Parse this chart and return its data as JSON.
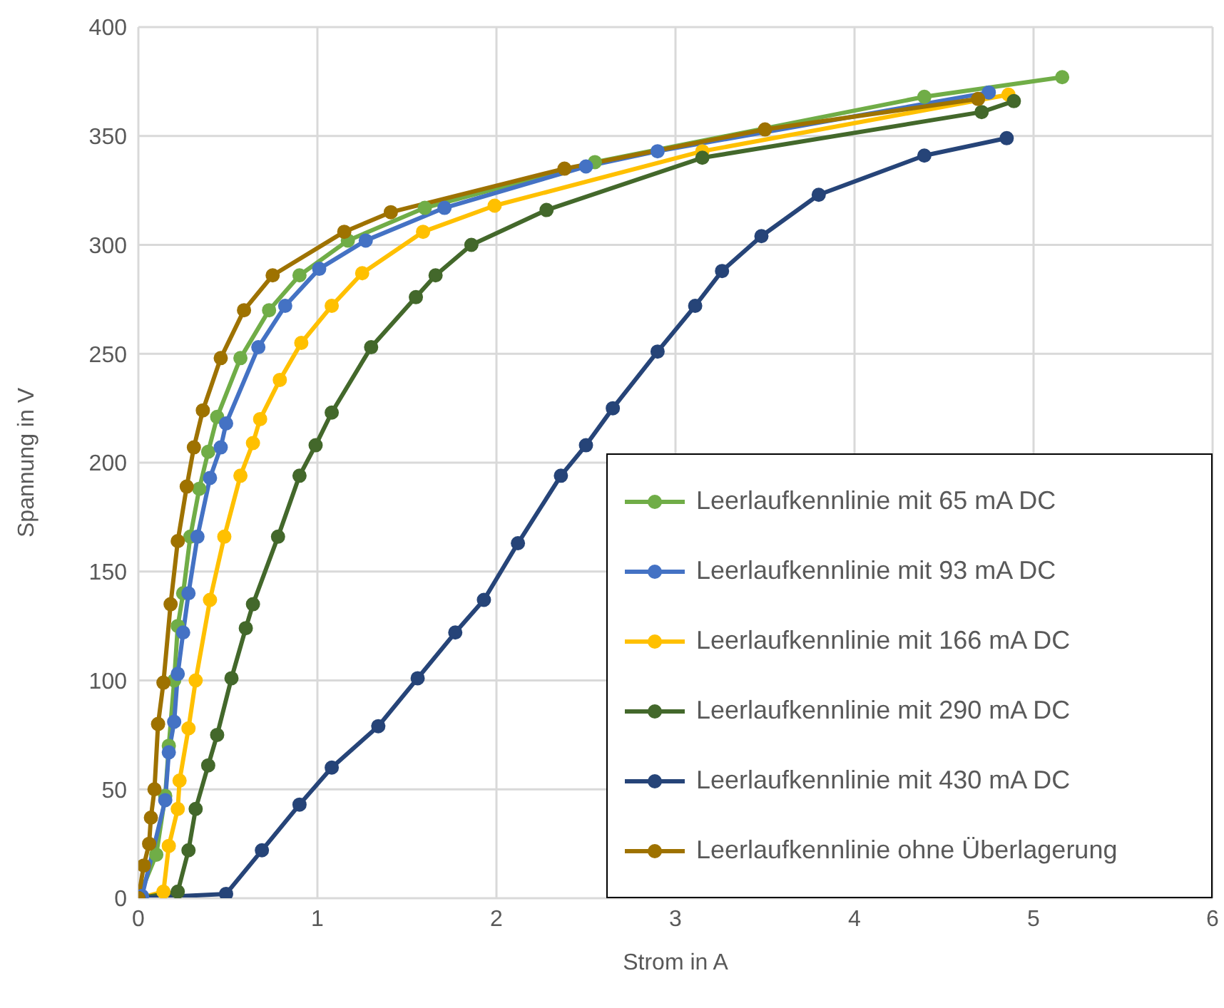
{
  "chart_data": {
    "type": "line",
    "xlabel": "Strom in A",
    "ylabel": "Spannung in V",
    "xlim": [
      0,
      6
    ],
    "xticks": [
      0,
      1,
      2,
      3,
      4,
      5,
      6
    ],
    "ylim": [
      0,
      400
    ],
    "yticks": [
      0,
      50,
      100,
      150,
      200,
      250,
      300,
      350,
      400
    ],
    "grid": true,
    "legend": "bottom right",
    "marker": "circle",
    "line_style": "solid",
    "series": [
      {
        "name": "Leerlaufkennlinie mit 65 mA DC",
        "color": "#70ad47",
        "x": [
          0,
          0.1,
          0.15,
          0.17,
          0.2,
          0.22,
          0.25,
          0.29,
          0.34,
          0.39,
          0.44,
          0.57,
          0.73,
          0.9,
          1.17,
          1.6,
          2.55,
          4.39,
          5.16
        ],
        "values": [
          0,
          20,
          47,
          70,
          100,
          125,
          140,
          166,
          188,
          205,
          221,
          248,
          270,
          286,
          302,
          317,
          338,
          368,
          377
        ]
      },
      {
        "name": "Leerlaufkennlinie mit 93 mA DC",
        "color": "#4472c4",
        "x": [
          0,
          0.02,
          0.15,
          0.17,
          0.2,
          0.22,
          0.25,
          0.28,
          0.33,
          0.4,
          0.46,
          0.49,
          0.67,
          0.82,
          1.01,
          1.27,
          1.71,
          2.5,
          2.9,
          4.75
        ],
        "values": [
          0,
          1,
          45,
          67,
          81,
          103,
          122,
          140,
          166,
          193,
          207,
          218,
          253,
          272,
          289,
          302,
          317,
          336,
          343,
          370
        ]
      },
      {
        "name": "Leerlaufkennlinie mit 166 mA DC",
        "color": "#ffc000",
        "x": [
          0,
          0.14,
          0.17,
          0.22,
          0.23,
          0.28,
          0.32,
          0.4,
          0.48,
          0.57,
          0.64,
          0.68,
          0.79,
          0.91,
          1.08,
          1.25,
          1.59,
          1.99,
          3.15,
          4.86
        ],
        "values": [
          0,
          3,
          24,
          41,
          54,
          78,
          100,
          137,
          166,
          194,
          209,
          220,
          238,
          255,
          272,
          287,
          306,
          318,
          343,
          369
        ]
      },
      {
        "name": "Leerlaufkennlinie mit 290 mA DC",
        "color": "#43682b",
        "x": [
          0,
          0.22,
          0.28,
          0.32,
          0.39,
          0.44,
          0.52,
          0.6,
          0.64,
          0.78,
          0.9,
          0.99,
          1.08,
          1.3,
          1.55,
          1.66,
          1.86,
          2.28,
          3.15,
          4.71,
          4.89
        ],
        "values": [
          0,
          3,
          22,
          41,
          61,
          75,
          101,
          124,
          135,
          166,
          194,
          208,
          223,
          253,
          276,
          286,
          300,
          316,
          340,
          361,
          366
        ]
      },
      {
        "name": "Leerlaufkennlinie mit 430 mA DC",
        "color": "#264478",
        "x": [
          0,
          0.49,
          0.69,
          0.9,
          1.08,
          1.34,
          1.56,
          1.77,
          1.93,
          2.12,
          2.36,
          2.5,
          2.65,
          2.9,
          3.11,
          3.26,
          3.48,
          3.8,
          4.39,
          4.85
        ],
        "values": [
          0,
          2,
          22,
          43,
          60,
          79,
          101,
          122,
          137,
          163,
          194,
          208,
          225,
          251,
          272,
          288,
          304,
          323,
          341,
          349
        ]
      },
      {
        "name": "Leerlaufkennlinie ohne Überlagerung",
        "color": "#9e7200",
        "x": [
          0,
          0.03,
          0.06,
          0.07,
          0.09,
          0.11,
          0.14,
          0.18,
          0.22,
          0.27,
          0.31,
          0.36,
          0.46,
          0.59,
          0.75,
          1.15,
          1.41,
          2.38,
          3.5,
          4.69
        ],
        "values": [
          0,
          15,
          25,
          37,
          50,
          80,
          99,
          135,
          164,
          189,
          207,
          224,
          248,
          270,
          286,
          306,
          315,
          335,
          353,
          367
        ]
      }
    ]
  }
}
